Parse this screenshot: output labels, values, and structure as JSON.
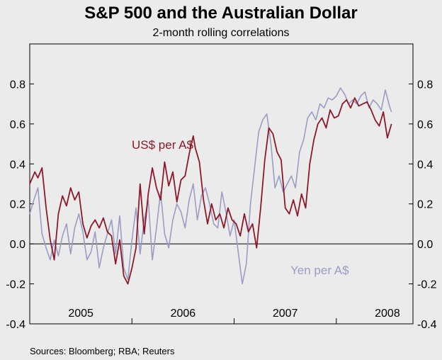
{
  "title": "S&P 500 and the Australian Dollar",
  "subtitle": "2-month rolling correlations",
  "source": "Sources: Bloomberg; RBA; Reuters",
  "colors": {
    "usd": "#8a1a2a",
    "yen": "#9a9cc4",
    "background": "#ebebeb"
  },
  "chart_data": {
    "type": "line",
    "title": "S&P 500 and the Australian Dollar",
    "subtitle": "2-month rolling correlations",
    "ylim": [
      -0.4,
      1.0
    ],
    "yticks": [
      -0.4,
      -0.2,
      0.0,
      0.2,
      0.4,
      0.6,
      0.8
    ],
    "ytick_labels": [
      "-0.4",
      "-0.2",
      "0.0",
      "0.2",
      "0.4",
      "0.6",
      "0.8"
    ],
    "xlim": [
      2004.5,
      2008.25
    ],
    "year_labels": [
      "2005",
      "2006",
      "2007",
      "2008"
    ],
    "year_label_positions": [
      2005.0,
      2006.0,
      2007.0,
      2008.0
    ],
    "year_boundaries": [
      2005.0,
      2006.0,
      2007.0,
      2008.0
    ],
    "zero_line": true,
    "grid": false,
    "series": [
      {
        "name": "US$ per A$",
        "x": [
          2004.5,
          2004.55,
          2004.58,
          2004.62,
          2004.66,
          2004.7,
          2004.74,
          2004.78,
          2004.82,
          2004.86,
          2004.9,
          2004.94,
          2004.98,
          2005.02,
          2005.06,
          2005.1,
          2005.14,
          2005.18,
          2005.22,
          2005.26,
          2005.3,
          2005.34,
          2005.38,
          2005.42,
          2005.46,
          2005.5,
          2005.54,
          2005.58,
          2005.62,
          2005.66,
          2005.7,
          2005.74,
          2005.78,
          2005.82,
          2005.86,
          2005.9,
          2005.94,
          2005.98,
          2006.02,
          2006.06,
          2006.1,
          2006.12,
          2006.16,
          2006.2,
          2006.24,
          2006.28,
          2006.32,
          2006.36,
          2006.4,
          2006.44,
          2006.48,
          2006.52,
          2006.56,
          2006.6,
          2006.64,
          2006.68,
          2006.72,
          2006.76,
          2006.8,
          2006.84,
          2006.88,
          2006.92,
          2006.96,
          2007.0,
          2007.04,
          2007.08,
          2007.12,
          2007.16,
          2007.2,
          2007.24,
          2007.28,
          2007.32,
          2007.36,
          2007.4,
          2007.44,
          2007.48,
          2007.52,
          2007.56,
          2007.6,
          2007.64,
          2007.68,
          2007.72,
          2007.76,
          2007.8,
          2007.84,
          2007.88,
          2007.92,
          2007.96,
          2008.0,
          2008.04
        ],
        "y": [
          0.3,
          0.36,
          0.33,
          0.38,
          0.18,
          0.02,
          -0.08,
          0.15,
          0.24,
          0.19,
          0.28,
          0.22,
          0.26,
          0.1,
          0.03,
          0.09,
          0.12,
          0.08,
          0.13,
          0.06,
          0.04,
          -0.1,
          0.02,
          -0.16,
          -0.2,
          -0.12,
          -0.02,
          0.3,
          0.05,
          0.25,
          0.38,
          0.28,
          0.22,
          0.41,
          0.29,
          0.36,
          0.21,
          0.32,
          0.34,
          0.45,
          0.54,
          0.48,
          0.41,
          0.22,
          0.1,
          0.2,
          0.12,
          0.15,
          0.08,
          0.18,
          0.12,
          0.1,
          0.04,
          0.15,
          0.06,
          0.1,
          -0.02,
          0.18,
          0.42,
          0.58,
          0.55,
          0.46,
          0.42,
          0.18,
          0.15,
          0.22,
          0.14,
          0.25,
          0.18,
          0.4,
          0.52,
          0.6,
          0.63,
          0.58,
          0.67,
          0.63,
          0.64,
          0.7,
          0.72,
          0.68,
          0.73,
          0.69,
          0.7,
          0.71,
          0.67,
          0.62,
          0.59,
          0.66,
          0.53,
          0.6
        ],
        "color": "#8a1a2a"
      },
      {
        "name": "Yen per A$",
        "x": [
          2004.5,
          2004.54,
          2004.58,
          2004.62,
          2004.66,
          2004.7,
          2004.74,
          2004.78,
          2004.82,
          2004.86,
          2004.9,
          2004.94,
          2004.98,
          2005.02,
          2005.06,
          2005.1,
          2005.14,
          2005.18,
          2005.22,
          2005.26,
          2005.3,
          2005.34,
          2005.38,
          2005.42,
          2005.46,
          2005.5,
          2005.54,
          2005.58,
          2005.62,
          2005.66,
          2005.7,
          2005.74,
          2005.78,
          2005.82,
          2005.86,
          2005.9,
          2005.94,
          2005.98,
          2006.02,
          2006.06,
          2006.1,
          2006.14,
          2006.18,
          2006.22,
          2006.26,
          2006.3,
          2006.34,
          2006.38,
          2006.42,
          2006.46,
          2006.5,
          2006.54,
          2006.58,
          2006.62,
          2006.66,
          2006.7,
          2006.74,
          2006.78,
          2006.82,
          2006.86,
          2006.9,
          2006.94,
          2006.98,
          2007.02,
          2007.06,
          2007.1,
          2007.14,
          2007.18,
          2007.22,
          2007.26,
          2007.3,
          2007.34,
          2007.38,
          2007.42,
          2007.46,
          2007.5,
          2007.54,
          2007.58,
          2007.62,
          2007.66,
          2007.7,
          2007.74,
          2007.78,
          2007.82,
          2007.86,
          2007.9,
          2007.94,
          2007.98,
          2008.02,
          2008.04
        ],
        "y": [
          0.15,
          0.22,
          0.28,
          0.05,
          -0.02,
          -0.08,
          0.02,
          -0.06,
          0.04,
          0.1,
          -0.05,
          0.08,
          0.15,
          0.06,
          -0.08,
          -0.04,
          0.06,
          -0.12,
          -0.02,
          0.05,
          0.12,
          -0.05,
          0.14,
          -0.12,
          -0.18,
          0.02,
          0.18,
          -0.05,
          0.12,
          0.22,
          -0.08,
          0.08,
          0.26,
          0.05,
          -0.02,
          0.12,
          0.2,
          0.16,
          0.08,
          0.22,
          0.3,
          0.12,
          0.24,
          0.28,
          0.2,
          0.1,
          0.08,
          0.26,
          0.16,
          0.04,
          0.12,
          -0.04,
          -0.2,
          -0.1,
          0.2,
          0.38,
          0.56,
          0.62,
          0.65,
          0.5,
          0.28,
          0.34,
          0.26,
          0.3,
          0.34,
          0.28,
          0.46,
          0.52,
          0.63,
          0.66,
          0.62,
          0.7,
          0.68,
          0.73,
          0.72,
          0.74,
          0.78,
          0.75,
          0.7,
          0.72,
          0.7,
          0.74,
          0.76,
          0.68,
          0.72,
          0.7,
          0.67,
          0.77,
          0.69,
          0.66
        ],
        "color": "#9a9cc4"
      }
    ]
  }
}
